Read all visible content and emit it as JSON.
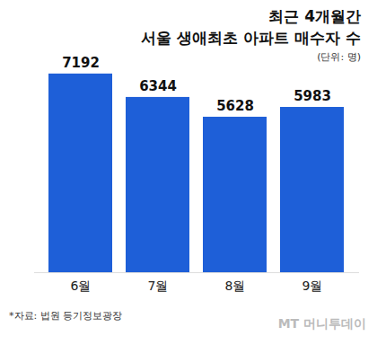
{
  "chart_data": {
    "type": "bar",
    "title": "최근 4개월간",
    "subtitle": "서울 생애최초 아파트 매수자 수",
    "y_label": "(단위: 명)",
    "categories": [
      "6월",
      "7월",
      "8월",
      "9월"
    ],
    "values": [
      7192,
      6344,
      5628,
      5983
    ],
    "color": "#1e5fd8",
    "ylim": [
      0,
      8000
    ],
    "grid": false,
    "data_labels": true,
    "tick_labels": "x",
    "source": "*자료: 법원 등기정보광장",
    "watermark": "MT 머니투데이"
  }
}
